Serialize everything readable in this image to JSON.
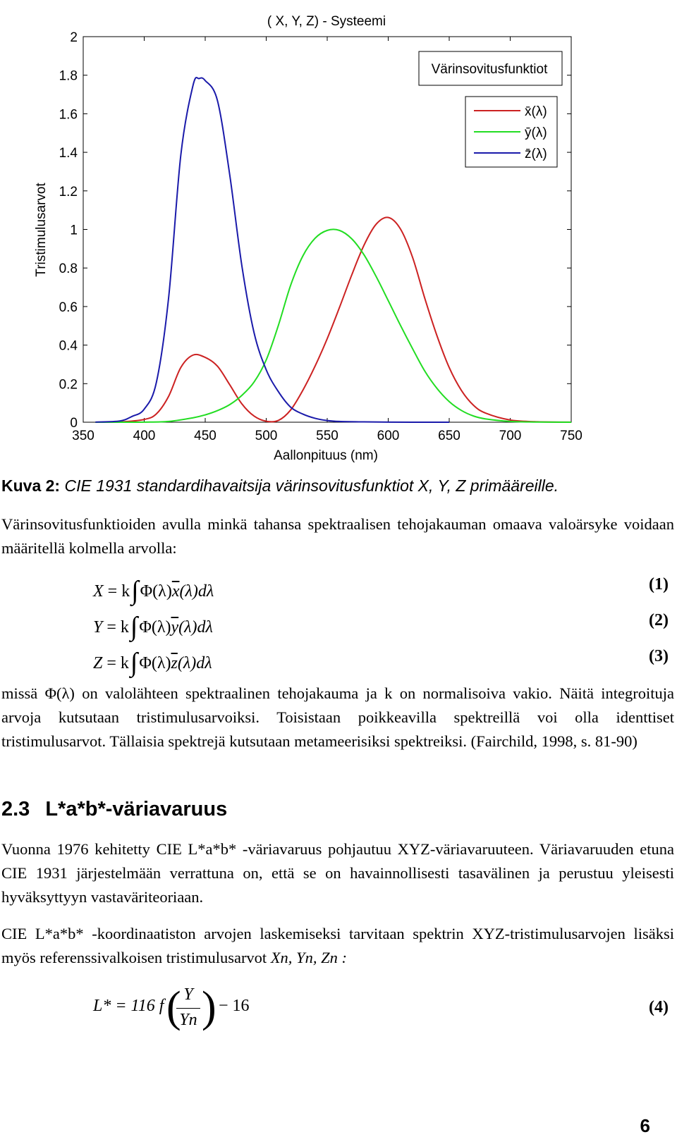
{
  "chart_data": {
    "type": "line",
    "title": "( X, Y, Z) - Systeemi",
    "xlabel": "Aallonpituus (nm)",
    "ylabel": "Tristimulusarvot",
    "xlim": [
      350,
      750
    ],
    "ylim": [
      0,
      2
    ],
    "xticks": [
      350,
      400,
      450,
      500,
      550,
      600,
      650,
      700,
      750
    ],
    "yticks": [
      0,
      0.2,
      0.4,
      0.6,
      0.8,
      1,
      1.2,
      1.4,
      1.6,
      1.8,
      2
    ],
    "ytick_labels": [
      "0",
      "0.2",
      "0.4",
      "0.6",
      "0.8",
      "1",
      "1.2",
      "1.4",
      "1.6",
      "1.8",
      "2"
    ],
    "legend_title": "Värinsovitusfunktiot",
    "series": [
      {
        "name": "x̄(λ)",
        "color": "#cc2222",
        "x": [
          360,
          380,
          400,
          410,
          420,
          430,
          440,
          450,
          460,
          470,
          480,
          490,
          500,
          510,
          520,
          530,
          540,
          550,
          560,
          570,
          580,
          590,
          600,
          610,
          620,
          630,
          640,
          650,
          660,
          670,
          680,
          700,
          720,
          750
        ],
        "y": [
          0.0001,
          0.0014,
          0.0143,
          0.0435,
          0.1344,
          0.2839,
          0.3483,
          0.3362,
          0.2908,
          0.1954,
          0.0956,
          0.032,
          0.0049,
          0.0093,
          0.0633,
          0.1655,
          0.2904,
          0.4334,
          0.5945,
          0.7621,
          0.9163,
          1.0263,
          1.0622,
          1.0026,
          0.8544,
          0.6424,
          0.4479,
          0.2835,
          0.1649,
          0.0874,
          0.0468,
          0.0114,
          0.0029,
          0.0003
        ]
      },
      {
        "name": "ȳ(λ)",
        "color": "#22dd22",
        "x": [
          360,
          380,
          400,
          420,
          440,
          450,
          460,
          470,
          480,
          490,
          500,
          510,
          520,
          530,
          540,
          550,
          560,
          570,
          580,
          590,
          600,
          610,
          620,
          630,
          640,
          650,
          660,
          670,
          680,
          700,
          720,
          750
        ],
        "y": [
          0,
          0,
          0.0004,
          0.004,
          0.023,
          0.038,
          0.06,
          0.091,
          0.139,
          0.208,
          0.323,
          0.503,
          0.71,
          0.862,
          0.954,
          0.995,
          0.995,
          0.952,
          0.87,
          0.757,
          0.631,
          0.503,
          0.381,
          0.265,
          0.175,
          0.107,
          0.061,
          0.032,
          0.017,
          0.0041,
          0.001,
          0.0001
        ]
      },
      {
        "name": "z̄(λ)",
        "color": "#1a1aaa",
        "x": [
          360,
          380,
          390,
          400,
          410,
          420,
          430,
          440,
          445,
          450,
          460,
          470,
          480,
          490,
          500,
          510,
          520,
          530,
          540,
          550,
          560,
          580,
          620,
          650
        ],
        "y": [
          0.0006,
          0.0065,
          0.03,
          0.0679,
          0.2074,
          0.6456,
          1.3856,
          1.7471,
          1.7826,
          1.7721,
          1.6692,
          1.2876,
          0.813,
          0.4652,
          0.272,
          0.1582,
          0.0782,
          0.0422,
          0.0203,
          0.0087,
          0.0039,
          0.0017,
          0.0,
          0.0
        ]
      }
    ]
  },
  "caption": {
    "label": "Kuva 2:",
    "text": "CIE 1931 standardihavaitsija värinsovitusfunktiot X, Y, Z  primääreille."
  },
  "paragraph1": "Värinsovitusfunktioiden avulla minkä tahansa spektraalisen tehojakauman omaava valoärsyke voidaan määritellä kolmella arvolla:",
  "equations": [
    {
      "lhs": "X",
      "mid": "= k",
      "phi": "Φ(λ)",
      "fn": "x",
      "rest": "(λ)dλ",
      "num": "(1)"
    },
    {
      "lhs": "Y",
      "mid": "= k",
      "phi": "Φ(λ)",
      "fn": "y",
      "rest": "(λ)dλ",
      "num": "(2)"
    },
    {
      "lhs": "Z",
      "mid": "= k",
      "phi": "Φ(λ)",
      "fn": "z",
      "rest": "(λ)dλ",
      "num": "(3)"
    }
  ],
  "paragraph2": "missä Φ(λ) on valolähteen spektraalinen tehojakauma ja k on normalisoiva vakio. Näitä integroituja arvoja kutsutaan tristimulusarvoiksi. Toisistaan poikkeavilla spektreillä voi olla identtiset tristimulusarvot. Tällaisia spektrejä kutsutaan metameerisiksi spektreiksi. (Fairchild, 1998, s. 81-90)",
  "section": {
    "number": "2.3",
    "title": "L*a*b*-väriavaruus"
  },
  "paragraph3": "Vuonna 1976 kehitetty CIE L*a*b* -väriavaruus pohjautuu XYZ-väriavaruuteen. Väriavaruuden etuna CIE 1931 järjestelmään verrattuna on, että se on havainnollisesti tasavälinen ja perustuu yleisesti hyväksyttyyn vastaväriteoriaan.",
  "paragraph4": {
    "text": "CIE L*a*b* -koordinaatiston arvojen laskemiseksi tarvitaan spektrin XYZ-tristimulusarvojen lisäksi myös referenssivalkoisen tristimulusarvot",
    "math": "Xn, Yn, Zn :"
  },
  "equation4": {
    "lhs": "L* = 116 f",
    "num_top": "Y",
    "num_bottom": "Yn",
    "tail": "− 16",
    "num": "(4)"
  },
  "page_number": "6"
}
